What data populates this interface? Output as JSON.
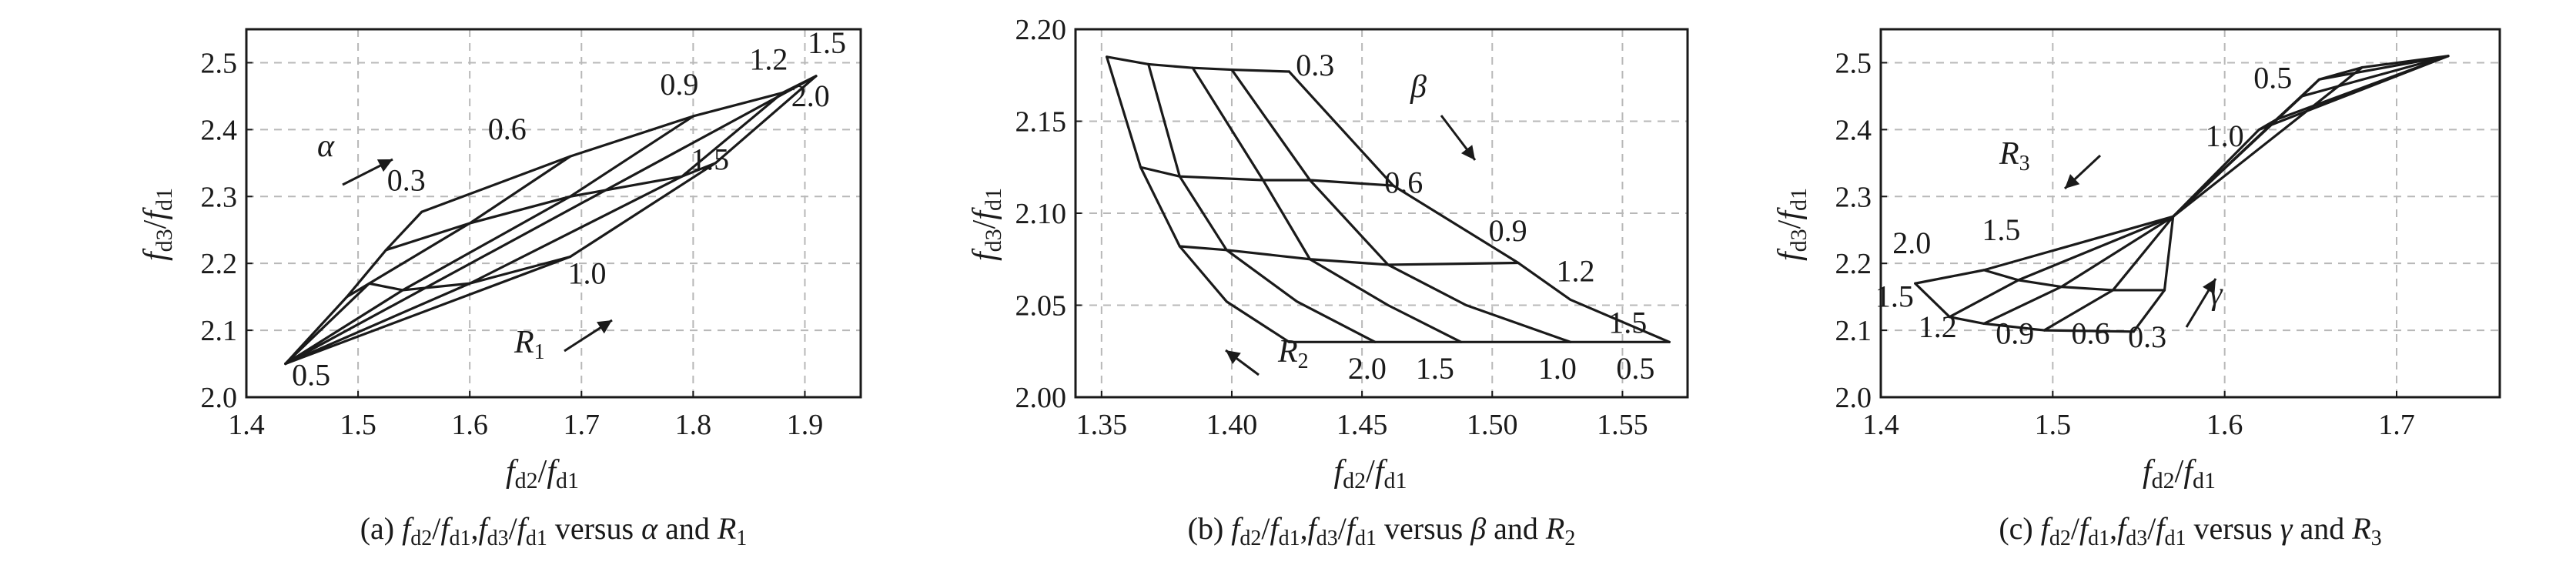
{
  "figure": {
    "panels": [
      {
        "caption_label": "(a)",
        "caption_text": "fd2/fd1, fd3/fd1 versus α and R1",
        "caption_vs": "versus",
        "caption_and": "and",
        "caption_param1": "α",
        "caption_param2": "R",
        "caption_param2_sub": "1",
        "ylabel_main": "f",
        "ylabel_sub": "d3",
        "ylabel_den": "f",
        "ylabel_den_sub": "d1",
        "xlabel_main": "f",
        "xlabel_sub": "d2",
        "xlabel_den": "f",
        "xlabel_den_sub": "d1"
      },
      {
        "caption_label": "(b)",
        "caption_text": "fd2/fd1, fd3/fd1 versus β and R2",
        "caption_vs": "versus",
        "caption_and": "and",
        "caption_param1": "β",
        "caption_param2": "R",
        "caption_param2_sub": "2",
        "ylabel_main": "f",
        "ylabel_sub": "d3",
        "ylabel_den": "f",
        "ylabel_den_sub": "d1",
        "xlabel_main": "f",
        "xlabel_sub": "d2",
        "xlabel_den": "f",
        "xlabel_den_sub": "d1"
      },
      {
        "caption_label": "(c)",
        "caption_text": "fd2/fd1, fd3/fd1 versus γ and R3",
        "caption_vs": "versus",
        "caption_and": "and",
        "caption_param1": "γ",
        "caption_param2": "R",
        "caption_param2_sub": "3",
        "ylabel_main": "f",
        "ylabel_sub": "d3",
        "ylabel_den": "f",
        "ylabel_den_sub": "d1",
        "xlabel_main": "f",
        "xlabel_sub": "d2",
        "xlabel_den": "f",
        "xlabel_den_sub": "d1"
      }
    ]
  },
  "chart_data": [
    {
      "type": "line",
      "title": "(a) fd2/fd1, fd3/fd1 versus α and R1",
      "xlabel": "fd2/fd1",
      "ylabel": "fd3/fd1",
      "xlim": [
        1.4,
        1.95
      ],
      "ylim": [
        2.0,
        2.55
      ],
      "xticks": [
        "1.4",
        "1.5",
        "1.6",
        "1.7",
        "1.8",
        "1.9"
      ],
      "yticks": [
        "2.0",
        "2.1",
        "2.2",
        "2.3",
        "2.4",
        "2.5"
      ],
      "grid": true,
      "param1_name": "α",
      "param2_name": "R1",
      "param1_values": [
        "0.3",
        "0.6",
        "0.9",
        "1.2",
        "1.5"
      ],
      "param2_values": [
        "0.5",
        "1.0",
        "1.5",
        "2.0"
      ],
      "param1_curves": [
        {
          "name": "0.3",
          "points": [
            [
              1.435,
              2.05
            ],
            [
              1.49,
              2.15
            ],
            [
              1.525,
              2.22
            ],
            [
              1.557,
              2.277
            ]
          ]
        },
        {
          "name": "0.6",
          "points": [
            [
              1.435,
              2.05
            ],
            [
              1.51,
              2.17
            ],
            [
              1.6,
              2.26
            ],
            [
              1.69,
              2.36
            ]
          ]
        },
        {
          "name": "0.9",
          "points": [
            [
              1.435,
              2.05
            ],
            [
              1.54,
              2.16
            ],
            [
              1.69,
              2.3
            ],
            [
              1.8,
              2.42
            ]
          ]
        },
        {
          "name": "1.2",
          "points": [
            [
              1.435,
              2.05
            ],
            [
              1.6,
              2.17
            ],
            [
              1.79,
              2.33
            ],
            [
              1.88,
              2.455
            ]
          ]
        },
        {
          "name": "1.5",
          "points": [
            [
              1.435,
              2.05
            ],
            [
              1.69,
              2.21
            ],
            [
              1.82,
              2.35
            ],
            [
              1.91,
              2.48
            ]
          ]
        }
      ],
      "param2_curves": [
        {
          "name": "0.5",
          "points": [
            [
              1.435,
              2.05
            ],
            [
              1.91,
              2.48
            ]
          ]
        },
        {
          "name": "1.0",
          "points": [
            [
              1.49,
              2.15
            ],
            [
              1.51,
              2.17
            ],
            [
              1.54,
              2.16
            ],
            [
              1.6,
              2.17
            ],
            [
              1.69,
              2.21
            ]
          ]
        },
        {
          "name": "1.5",
          "points": [
            [
              1.525,
              2.22
            ],
            [
              1.6,
              2.26
            ],
            [
              1.69,
              2.3
            ],
            [
              1.79,
              2.33
            ],
            [
              1.82,
              2.35
            ]
          ]
        },
        {
          "name": "2.0",
          "points": [
            [
              1.557,
              2.277
            ],
            [
              1.69,
              2.36
            ],
            [
              1.8,
              2.42
            ],
            [
              1.88,
              2.455
            ],
            [
              1.91,
              2.48
            ]
          ]
        }
      ],
      "annotations": [
        "α",
        "R1"
      ]
    },
    {
      "type": "line",
      "title": "(b) fd2/fd1, fd3/fd1 versus β and R2",
      "xlabel": "fd2/fd1",
      "ylabel": "fd3/fd1",
      "xlim": [
        1.34,
        1.575
      ],
      "ylim": [
        2.0,
        2.2
      ],
      "xticks": [
        "1.35",
        "1.40",
        "1.45",
        "1.50",
        "1.55"
      ],
      "yticks": [
        "2.00",
        "2.05",
        "2.10",
        "2.15",
        "2.20"
      ],
      "grid": true,
      "param1_name": "β",
      "param2_name": "R2",
      "param1_values": [
        "0.3",
        "0.6",
        "0.9",
        "1.2",
        "1.5"
      ],
      "param2_values": [
        "2.0",
        "1.5",
        "1.0",
        "0.5"
      ],
      "param1_curves": [
        {
          "name": "0.3",
          "points": [
            [
              1.352,
              2.185
            ],
            [
              1.365,
              2.125
            ],
            [
              1.38,
              2.082
            ],
            [
              1.398,
              2.052
            ],
            [
              1.422,
              2.03
            ]
          ]
        },
        {
          "name": "0.6",
          "points": [
            [
              1.368,
              2.181
            ],
            [
              1.38,
              2.12
            ],
            [
              1.398,
              2.08
            ],
            [
              1.425,
              2.052
            ],
            [
              1.455,
              2.03
            ]
          ]
        },
        {
          "name": "0.9",
          "points": [
            [
              1.385,
              2.179
            ],
            [
              1.412,
              2.118
            ],
            [
              1.43,
              2.075
            ],
            [
              1.46,
              2.05
            ],
            [
              1.488,
              2.03
            ]
          ]
        },
        {
          "name": "1.2",
          "points": [
            [
              1.4,
              2.178
            ],
            [
              1.43,
              2.118
            ],
            [
              1.46,
              2.072
            ],
            [
              1.49,
              2.05
            ],
            [
              1.53,
              2.03
            ]
          ]
        },
        {
          "name": "1.5",
          "points": [
            [
              1.422,
              2.177
            ],
            [
              1.462,
              2.115
            ],
            [
              1.51,
              2.073
            ],
            [
              1.53,
              2.053
            ],
            [
              1.568,
              2.03
            ]
          ]
        }
      ],
      "param2_curves": [
        {
          "name": "2.0",
          "points": [
            [
              1.352,
              2.185
            ],
            [
              1.368,
              2.181
            ],
            [
              1.385,
              2.179
            ],
            [
              1.4,
              2.178
            ],
            [
              1.422,
              2.177
            ]
          ]
        },
        {
          "name": "1.5",
          "points": [
            [
              1.365,
              2.125
            ],
            [
              1.38,
              2.12
            ],
            [
              1.412,
              2.118
            ],
            [
              1.43,
              2.118
            ],
            [
              1.462,
              2.115
            ]
          ]
        },
        {
          "name": "1.0",
          "points": [
            [
              1.38,
              2.082
            ],
            [
              1.398,
              2.08
            ],
            [
              1.43,
              2.075
            ],
            [
              1.46,
              2.072
            ],
            [
              1.51,
              2.073
            ]
          ]
        },
        {
          "name": "0.5",
          "points": [
            [
              1.422,
              2.03
            ],
            [
              1.455,
              2.03
            ],
            [
              1.488,
              2.03
            ],
            [
              1.53,
              2.03
            ],
            [
              1.568,
              2.03
            ]
          ]
        }
      ],
      "annotations": [
        "β",
        "R2"
      ]
    },
    {
      "type": "line",
      "title": "(c) fd2/fd1, fd3/fd1 versus γ and R3",
      "xlabel": "fd2/fd1",
      "ylabel": "fd3/fd1",
      "xlim": [
        1.4,
        1.76
      ],
      "ylim": [
        2.0,
        2.55
      ],
      "xticks": [
        "1.4",
        "1.5",
        "1.6",
        "1.7"
      ],
      "yticks": [
        "2.0",
        "2.1",
        "2.2",
        "2.3",
        "2.4",
        "2.5"
      ],
      "grid": true,
      "param1_name": "γ",
      "param2_name": "R3",
      "param1_values": [
        "0.3",
        "0.6",
        "0.9",
        "1.2",
        "1.5"
      ],
      "param2_values": [
        "2.0",
        "1.5",
        "1.0",
        "0.5"
      ],
      "param1_curves": [
        {
          "name": "0.3",
          "points": [
            [
              1.547,
              2.098
            ],
            [
              1.565,
              2.16
            ],
            [
              1.57,
              2.27
            ],
            [
              1.62,
              2.4
            ],
            [
              1.73,
              2.51
            ]
          ]
        },
        {
          "name": "0.6",
          "points": [
            [
              1.495,
              2.1
            ],
            [
              1.535,
              2.16
            ],
            [
              1.57,
              2.27
            ],
            [
              1.63,
              2.415
            ],
            [
              1.73,
              2.51
            ]
          ]
        },
        {
          "name": "0.9",
          "points": [
            [
              1.46,
              2.11
            ],
            [
              1.505,
              2.165
            ],
            [
              1.57,
              2.27
            ],
            [
              1.645,
              2.45
            ],
            [
              1.73,
              2.51
            ]
          ]
        },
        {
          "name": "1.2",
          "points": [
            [
              1.44,
              2.12
            ],
            [
              1.48,
              2.175
            ],
            [
              1.57,
              2.27
            ],
            [
              1.655,
              2.475
            ],
            [
              1.73,
              2.51
            ]
          ]
        },
        {
          "name": "1.5",
          "points": [
            [
              1.42,
              2.17
            ],
            [
              1.46,
              2.19
            ],
            [
              1.57,
              2.27
            ],
            [
              1.68,
              2.493
            ],
            [
              1.73,
              2.51
            ]
          ]
        }
      ],
      "param2_curves": [
        {
          "name": "2.0",
          "points": [
            [
              1.42,
              2.17
            ],
            [
              1.44,
              2.12
            ],
            [
              1.46,
              2.11
            ],
            [
              1.495,
              2.1
            ],
            [
              1.547,
              2.098
            ]
          ]
        },
        {
          "name": "1.5",
          "points": [
            [
              1.46,
              2.19
            ],
            [
              1.48,
              2.175
            ],
            [
              1.505,
              2.165
            ],
            [
              1.535,
              2.16
            ],
            [
              1.565,
              2.16
            ]
          ]
        },
        {
          "name": "1.0",
          "points": [
            [
              1.62,
              2.4
            ],
            [
              1.63,
              2.415
            ],
            [
              1.645,
              2.45
            ],
            [
              1.655,
              2.475
            ],
            [
              1.68,
              2.493
            ]
          ]
        },
        {
          "name": "0.5",
          "points": [
            [
              1.73,
              2.51
            ]
          ]
        }
      ],
      "annotations": [
        "γ",
        "R3"
      ]
    }
  ]
}
